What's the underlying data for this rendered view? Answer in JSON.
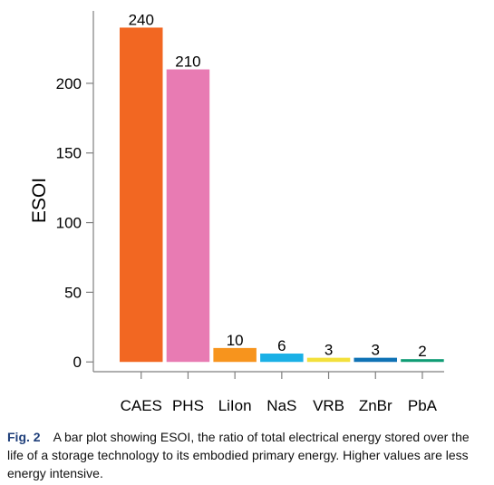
{
  "chart_data": {
    "type": "bar",
    "title": "",
    "xlabel": "",
    "ylabel": "ESOI",
    "categories": [
      "CAES",
      "PHS",
      "LiIon",
      "NaS",
      "VRB",
      "ZnBr",
      "PbA"
    ],
    "values": [
      240,
      210,
      10,
      6,
      3,
      3,
      2
    ],
    "colors": [
      "#f26722",
      "#e87bb3",
      "#f7941d",
      "#1ab0e6",
      "#f3e03b",
      "#0f72b5",
      "#0f9c74"
    ],
    "yticks": [
      0,
      50,
      100,
      150,
      200
    ],
    "ylim": [
      -7,
      252
    ],
    "grid": false,
    "axis_color": "#7f7f7f"
  },
  "caption": {
    "label": "Fig. 2",
    "text": "A bar plot showing ESOI, the ratio of total electrical energy stored over the life of a storage technology to its embodied primary energy. Higher values are less energy intensive."
  }
}
